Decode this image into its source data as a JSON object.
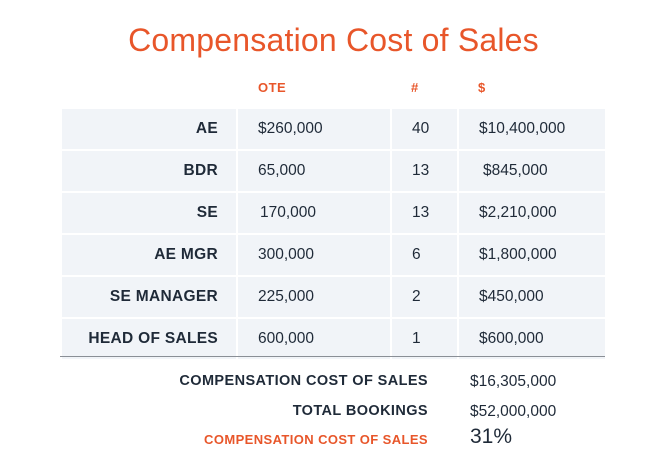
{
  "title": "Compensation Cost of Sales",
  "headers": {
    "ote": "OTE",
    "count": "#",
    "total": "$"
  },
  "rows": [
    {
      "role": "AE",
      "ote": "$260,000",
      "count": "40",
      "total": "$10,400,000"
    },
    {
      "role": "BDR",
      "ote": "65,000",
      "count": "13",
      "total": "$845,000"
    },
    {
      "role": "SE",
      "ote": "170,000",
      "count": "13",
      "total": "$2,210,000"
    },
    {
      "role": "AE MGR",
      "ote": "300,000",
      "count": "6",
      "total": "$1,800,000"
    },
    {
      "role": "SE MANAGER",
      "ote": "225,000",
      "count": "2",
      "total": "$450,000"
    },
    {
      "role": "HEAD OF SALES",
      "ote": "600,000",
      "count": "1",
      "total": "$600,000"
    }
  ],
  "summary": {
    "comp_cost_label": "COMPENSATION COST OF SALES",
    "comp_cost_value": "$16,305,000",
    "bookings_label": "TOTAL BOOKINGS",
    "bookings_value": "$52,000,000",
    "ratio_label": "COMPENSATION COST OF SALES",
    "ratio_value": "31%"
  },
  "colors": {
    "accent": "#e8562a",
    "text": "#1f2a38",
    "row_fill": "#f1f4f8"
  }
}
